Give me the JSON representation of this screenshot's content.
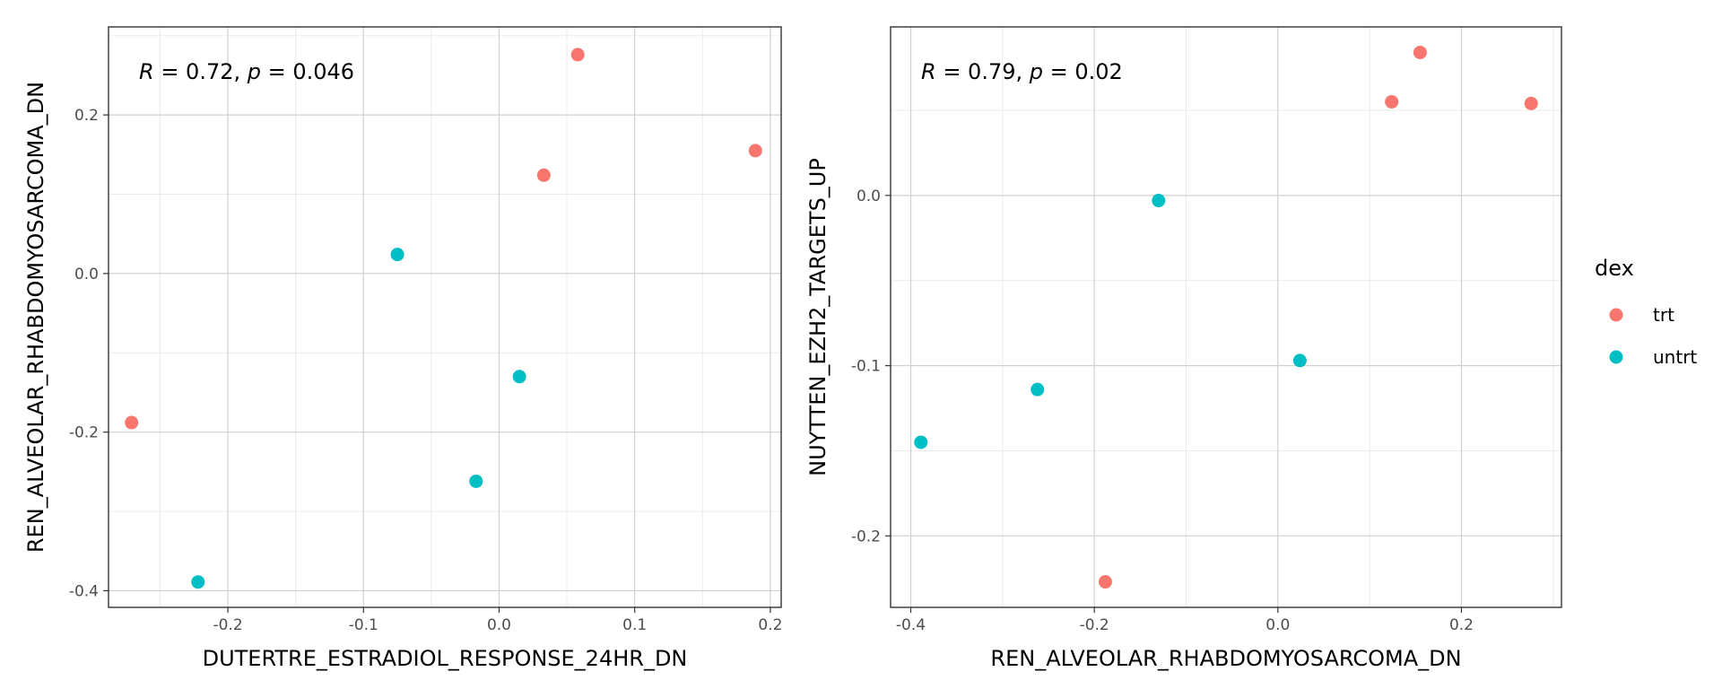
{
  "colors": {
    "trt": "#F8766D",
    "untrt": "#00BFC4"
  },
  "legend": {
    "title": "dex",
    "items": [
      {
        "label": "trt",
        "color": "#F8766D"
      },
      {
        "label": "untrt",
        "color": "#00BFC4"
      }
    ]
  },
  "chart_data": [
    {
      "type": "scatter",
      "xlabel": "DUTERTRE_ESTRADIOL_RESPONSE_24HR_DN",
      "ylabel": "REN_ALVEOLAR_RHABDOMYOSARCOMA_DN",
      "stat": {
        "r_label": "R",
        "r_value": " = 0.72, ",
        "p_label": "p",
        "p_value": " = 0.046"
      },
      "xlim": [
        -0.288,
        0.208
      ],
      "ylim": [
        -0.421,
        0.311
      ],
      "x_ticks": [
        -0.2,
        -0.1,
        0.0,
        0.1,
        0.2
      ],
      "x_tick_labels": [
        "-0.2",
        "-0.1",
        "0.0",
        "0.1",
        "0.2"
      ],
      "y_ticks": [
        -0.4,
        -0.2,
        0.0,
        0.2
      ],
      "y_tick_labels": [
        "-0.4",
        "-0.2",
        "0.0",
        "0.2"
      ],
      "grid": true,
      "series": [
        {
          "name": "trt",
          "points": [
            [
              0.058,
              0.276
            ],
            [
              0.189,
              0.155
            ],
            [
              0.033,
              0.124
            ],
            [
              -0.271,
              -0.188
            ]
          ]
        },
        {
          "name": "untrt",
          "points": [
            [
              -0.075,
              0.024
            ],
            [
              0.015,
              -0.13
            ],
            [
              -0.017,
              -0.262
            ],
            [
              -0.222,
              -0.389
            ]
          ]
        }
      ]
    },
    {
      "type": "scatter",
      "xlabel": "REN_ALVEOLAR_RHABDOMYOSARCOMA_DN",
      "ylabel": "NUYTTEN_EZH2_TARGETS_UP",
      "stat": {
        "r_label": "R",
        "r_value": " = 0.79, ",
        "p_label": "p",
        "p_value": " = 0.02"
      },
      "xlim": [
        -0.422,
        0.309
      ],
      "ylim": [
        -0.242,
        0.099
      ],
      "x_ticks": [
        -0.4,
        -0.2,
        0.0,
        0.2
      ],
      "x_tick_labels": [
        "-0.4",
        "-0.2",
        "0.0",
        "0.2"
      ],
      "y_ticks": [
        -0.2,
        -0.1,
        0.0
      ],
      "y_tick_labels": [
        "-0.2",
        "-0.1",
        "0.0"
      ],
      "grid": true,
      "series": [
        {
          "name": "trt",
          "points": [
            [
              0.155,
              0.084
            ],
            [
              0.124,
              0.055
            ],
            [
              0.276,
              0.054
            ],
            [
              -0.188,
              -0.227
            ]
          ]
        },
        {
          "name": "untrt",
          "points": [
            [
              -0.13,
              -0.003
            ],
            [
              0.024,
              -0.097
            ],
            [
              -0.262,
              -0.114
            ],
            [
              -0.389,
              -0.145
            ]
          ]
        }
      ]
    }
  ]
}
